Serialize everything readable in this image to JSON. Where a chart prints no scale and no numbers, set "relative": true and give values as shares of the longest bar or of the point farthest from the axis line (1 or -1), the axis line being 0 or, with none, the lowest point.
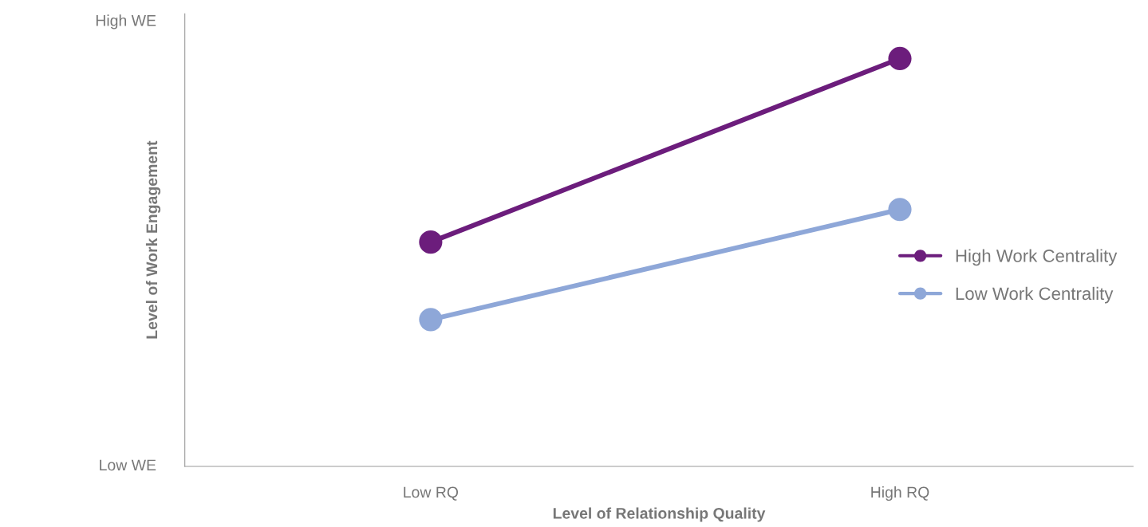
{
  "chart_data": {
    "type": "line",
    "xlabel": "Level of Relationship Quality",
    "ylabel": "Level of Work Engagement",
    "categories": [
      "Low RQ",
      "High RQ"
    ],
    "series": [
      {
        "name": "High Work Centrality",
        "color": "#6c1d7c",
        "values": [
          0.55,
          1
        ]
      },
      {
        "name": "Low Work Centrality",
        "color": "#8ea7d8",
        "values": [
          0.36,
          0.63
        ]
      }
    ],
    "relative": true,
    "annotations": [
      "Low WE",
      "High WE"
    ],
    "marker": "circle",
    "line_style": "solid",
    "grid": false,
    "legend": "right"
  }
}
